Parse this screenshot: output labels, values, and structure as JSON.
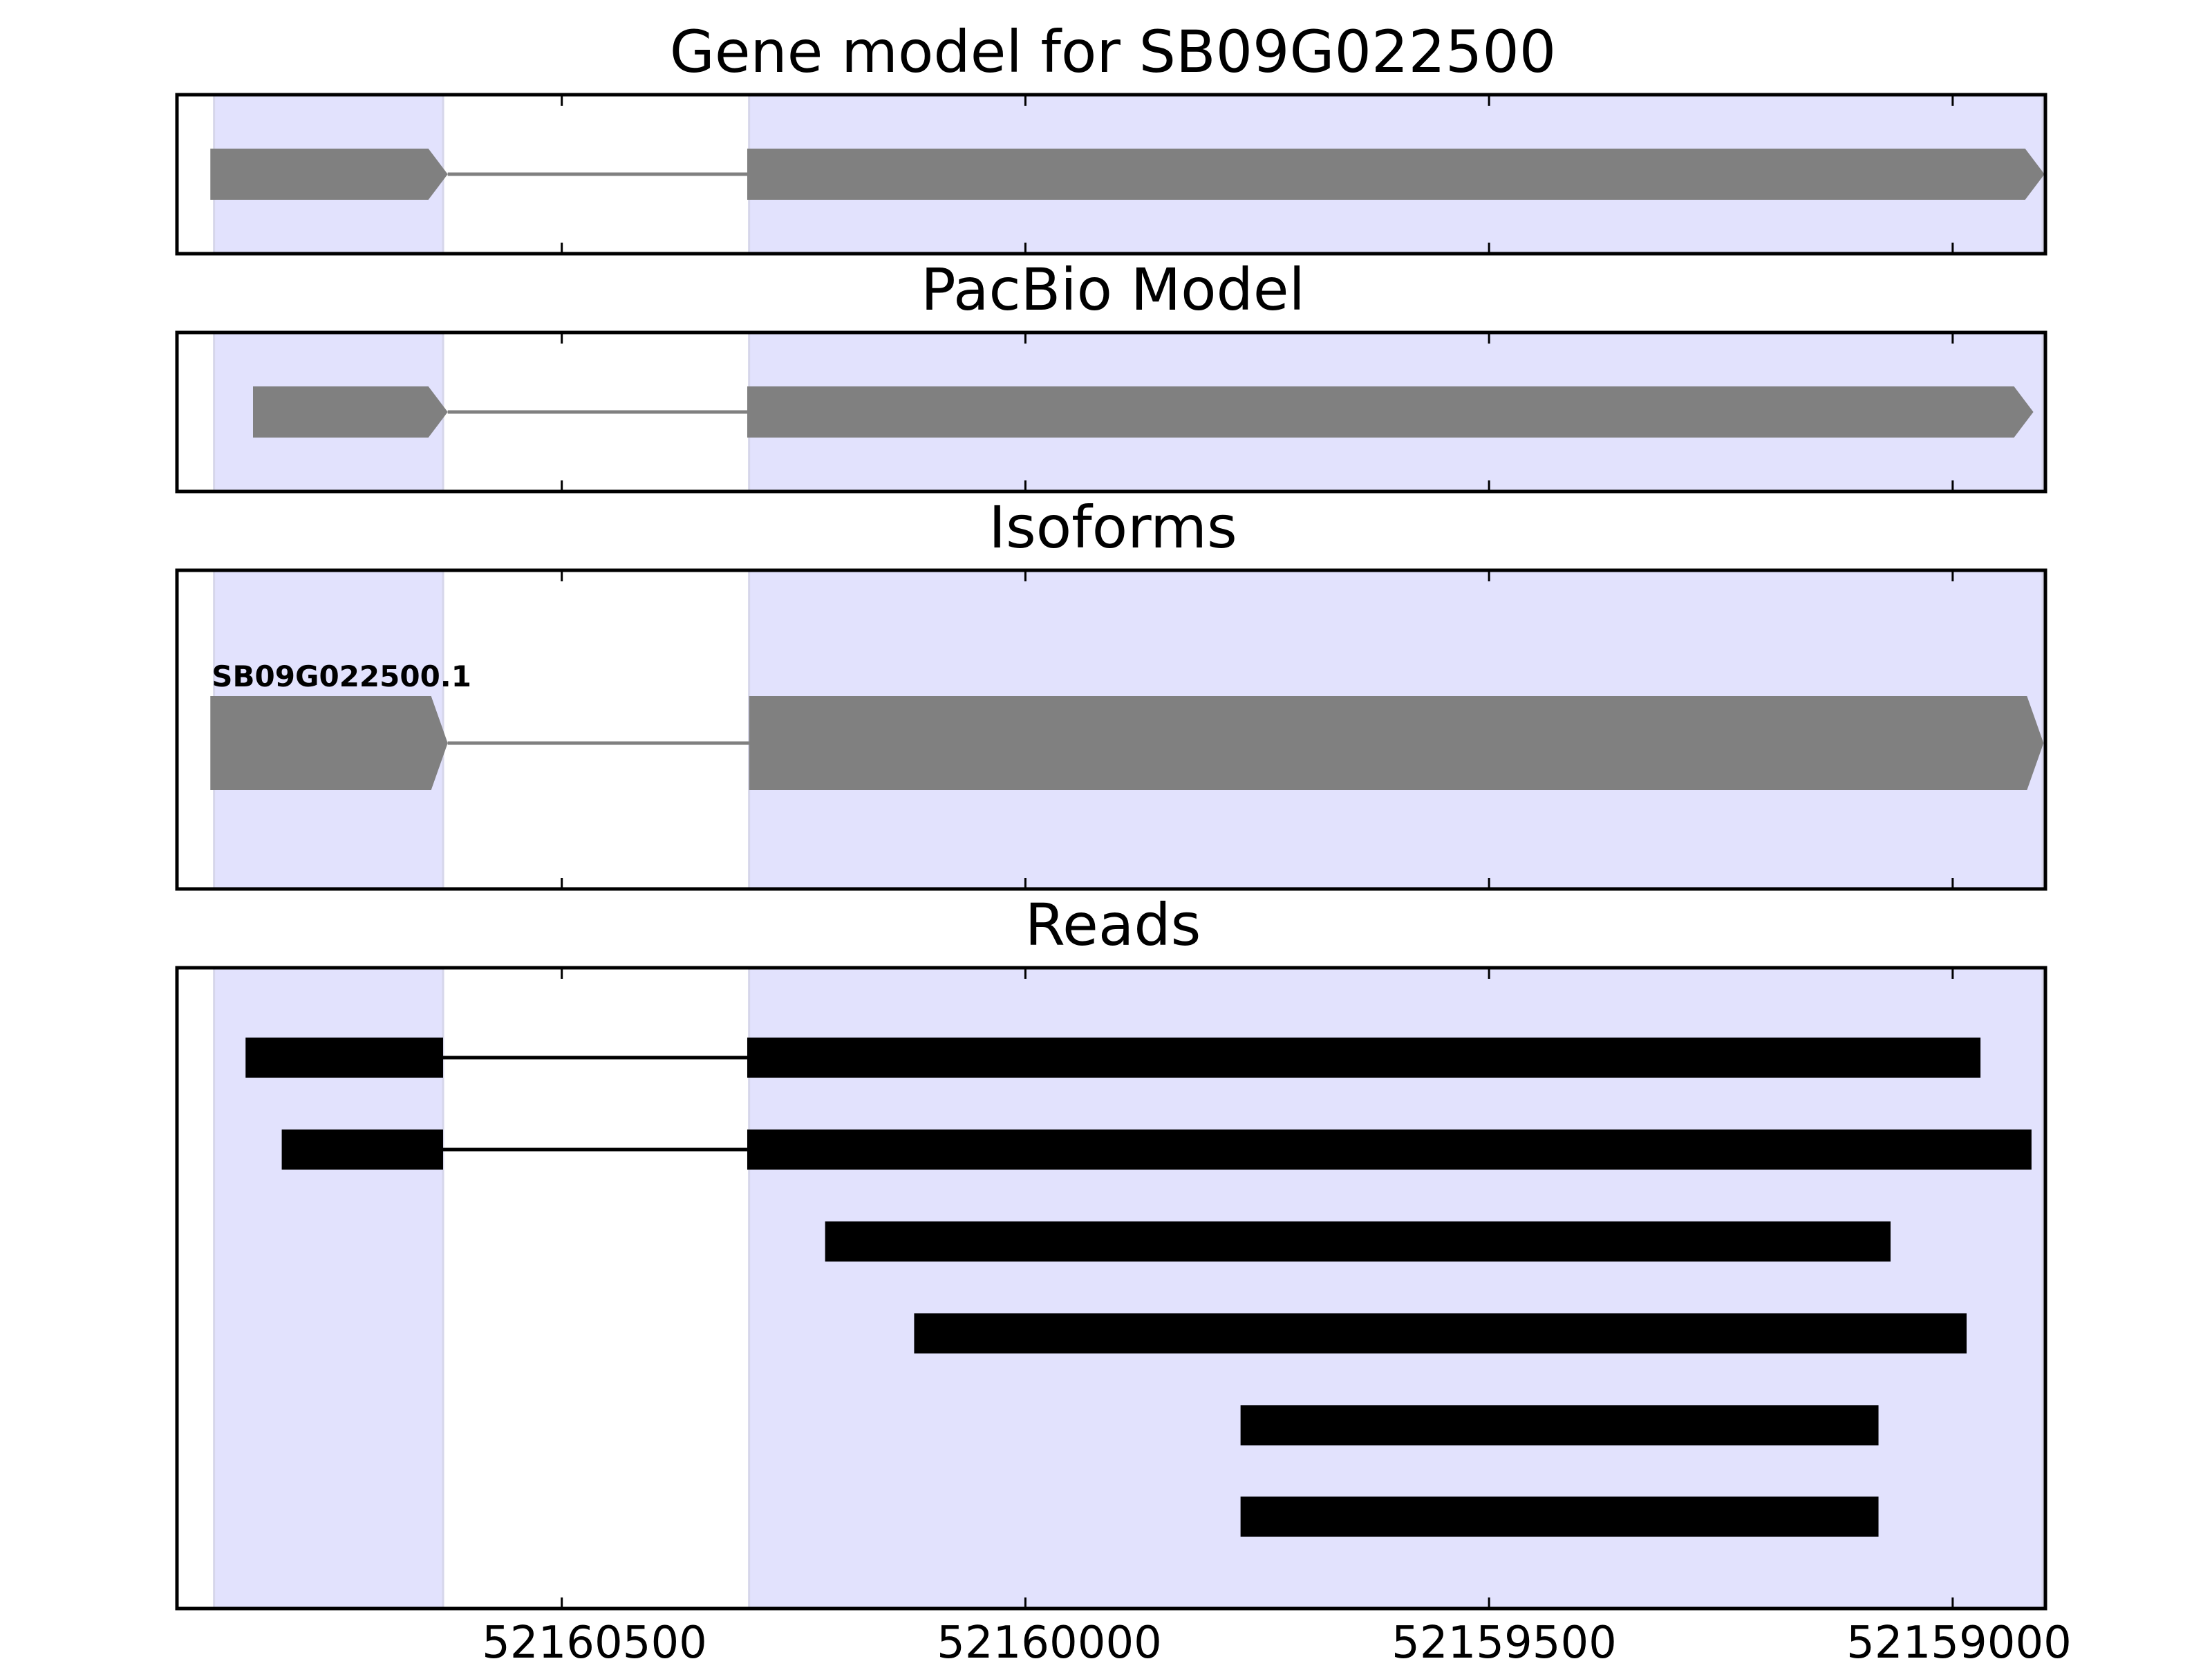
{
  "chart_data": {
    "type": "gene-track",
    "x_axis": {
      "reversed": true,
      "range": [
        52160915,
        52158900
      ],
      "ticks": [
        52160500,
        52160000,
        52159500,
        52159000
      ],
      "tick_labels": [
        "52160500",
        "52160000",
        "52159500",
        "52159000"
      ]
    },
    "colors": {
      "exon": "#808080",
      "intron": "#808080",
      "read": "#000000",
      "exon_shading": "#e2e2fd",
      "frame": "#000000"
    },
    "exon_regions": [
      {
        "start": 52160875,
        "end": 52160628
      },
      {
        "start": 52160298,
        "end": 52158903
      }
    ],
    "panels": [
      {
        "title": "Gene model for SB09G022500",
        "models": [
          {
            "label": "",
            "exons": [
              {
                "start": 52160879,
                "end": 52160623
              },
              {
                "start": 52160300,
                "end": 52158901
              }
            ]
          }
        ]
      },
      {
        "title": "PacBio Model",
        "models": [
          {
            "label": "",
            "exons": [
              {
                "start": 52160833,
                "end": 52160623
              },
              {
                "start": 52160300,
                "end": 52158913
              }
            ]
          }
        ]
      },
      {
        "title": "Isoforms",
        "models": [
          {
            "label": "SB09G022500.1",
            "exons": [
              {
                "start": 52160879,
                "end": 52160623
              },
              {
                "start": 52160298,
                "end": 52158902
              }
            ]
          }
        ]
      },
      {
        "title": "Reads",
        "reads": [
          {
            "exons": [
              {
                "start": 52160841,
                "end": 52160628
              },
              {
                "start": 52160300,
                "end": 52158970
              }
            ]
          },
          {
            "exons": [
              {
                "start": 52160802,
                "end": 52160628
              },
              {
                "start": 52160300,
                "end": 52158915
              }
            ]
          },
          {
            "exons": [
              {
                "start": 52160216,
                "end": 52159067
              }
            ]
          },
          {
            "exons": [
              {
                "start": 52160120,
                "end": 52158985
              }
            ]
          },
          {
            "exons": [
              {
                "start": 52159768,
                "end": 52159080
              }
            ]
          },
          {
            "exons": [
              {
                "start": 52159768,
                "end": 52159080
              }
            ]
          }
        ]
      }
    ]
  }
}
